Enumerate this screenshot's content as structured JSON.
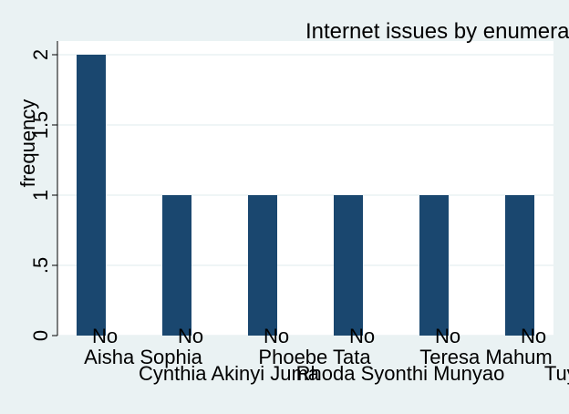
{
  "chart_data": {
    "type": "bar",
    "title": "Internet issues by enumera",
    "xlabel": "",
    "ylabel": "frequency",
    "ylim": [
      0,
      2
    ],
    "yticks": [
      "0",
      ".5",
      "1",
      "1.5",
      "2"
    ],
    "grid": true,
    "legend": "none",
    "categories": [
      {
        "group": "No",
        "name": "Aisha Sophia"
      },
      {
        "group": "No",
        "name": "Cynthia Akinyi Juma"
      },
      {
        "group": "No",
        "name": "Phoebe Tata"
      },
      {
        "group": "No",
        "name": "Rhoda Syonthi Munyao"
      },
      {
        "group": "No",
        "name": "Teresa Mahum"
      },
      {
        "group": "No",
        "name": "Tuyab"
      }
    ],
    "values": [
      2,
      1,
      1,
      1,
      1,
      1
    ]
  },
  "colors": {
    "bar": "#1a476f",
    "outer_background": "#eaf2f3",
    "plot_background": "#ffffff",
    "grid": "#eaf2f3"
  }
}
